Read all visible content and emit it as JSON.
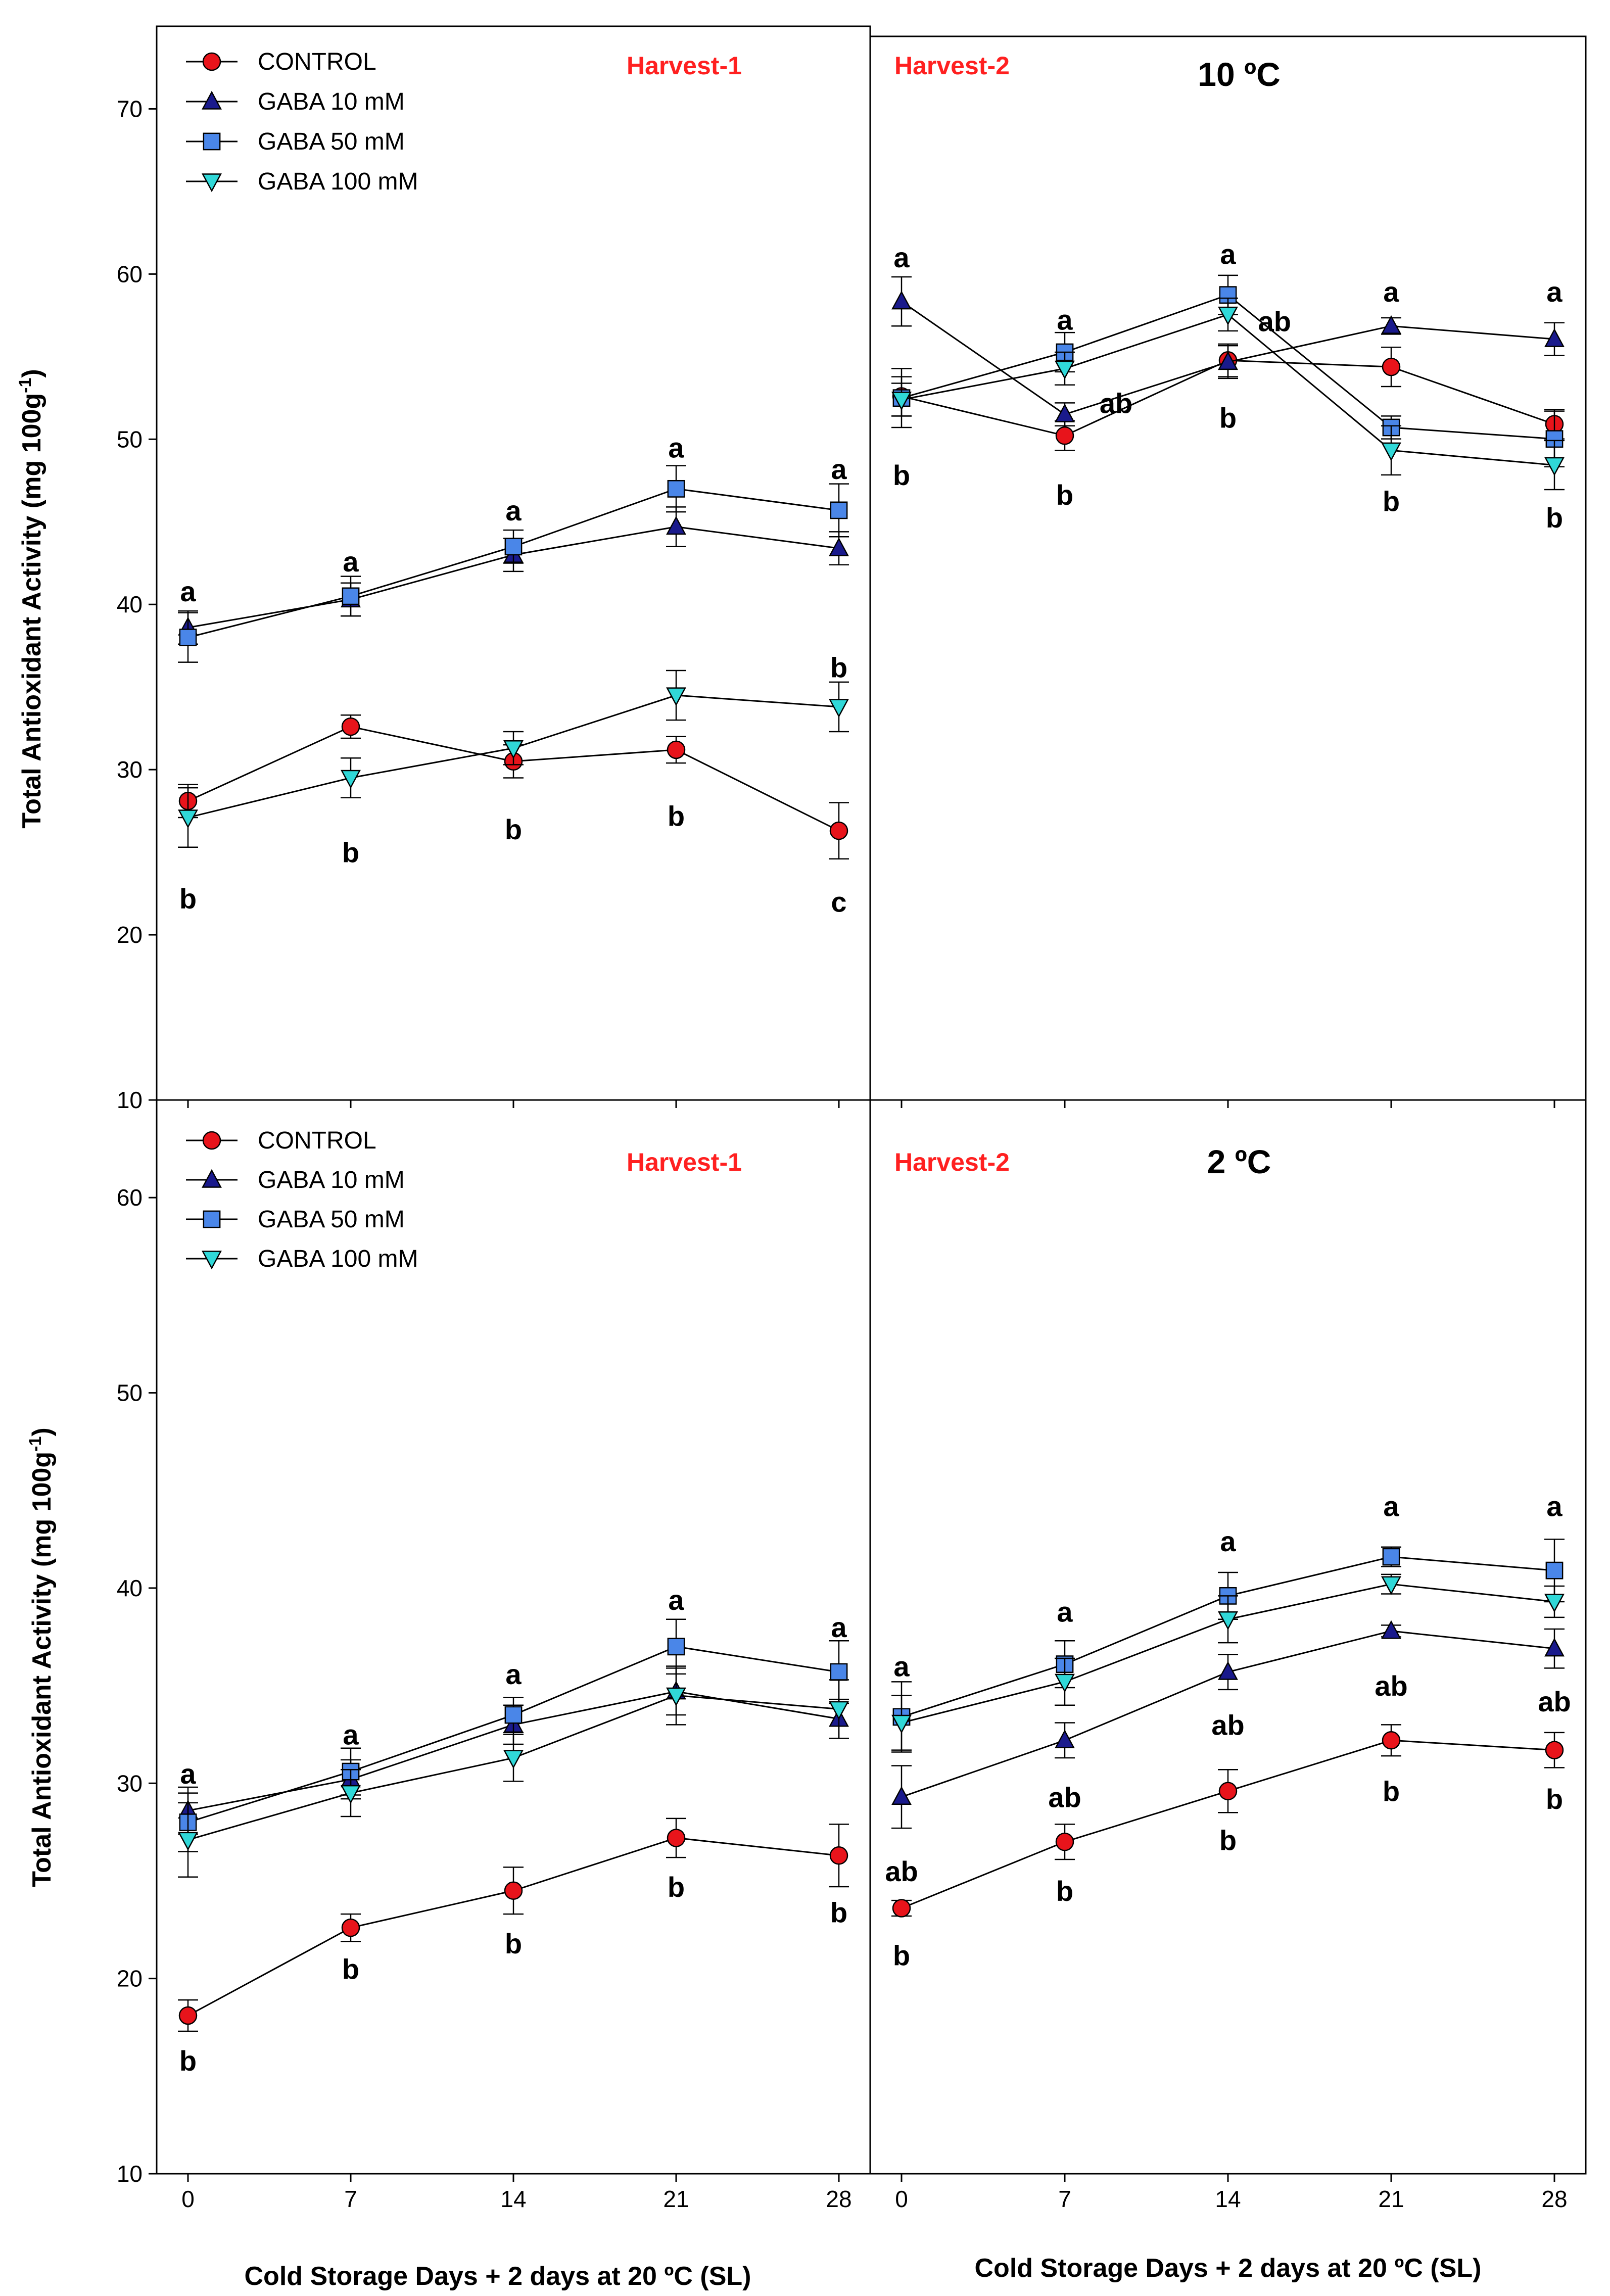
{
  "chart_data": {
    "type": "line",
    "x_label": "Cold Storage Days + 2 days at 20 ºC (SL)",
    "y_label_main": "Total Antioxidant Activity (mg 100g",
    "y_label_sup": "-1",
    "y_label_close": ")",
    "x_ticks": [
      "0",
      "7",
      "14",
      "21",
      "28"
    ],
    "colors": {
      "CONTROL": "#e8141b",
      "GABA 10 mM": "#1a1a8c",
      "GABA 50 mM": "#4a86e8",
      "GABA 100 mM": "#30d8d8"
    },
    "panels": [
      {
        "id": "top-left",
        "harvest_label": "Harvest-1",
        "temp_label": "",
        "ylim": [
          10,
          75
        ],
        "y_ticks": [
          "10",
          "20",
          "30",
          "40",
          "50",
          "60",
          "70"
        ],
        "legend": [
          "CONTROL",
          "GABA 10 mM",
          "GABA 50 mM",
          "GABA 100 mM"
        ],
        "series": [
          {
            "name": "CONTROL",
            "values": [
              28.1,
              32.6,
              30.5,
              31.2,
              26.3
            ],
            "errors": [
              1.0,
              0.7,
              1.0,
              0.8,
              1.7
            ]
          },
          {
            "name": "GABA 10 mM",
            "values": [
              38.6,
              40.3,
              43.0,
              44.7,
              43.4
            ],
            "errors": [
              1.0,
              1.0,
              1.0,
              1.2,
              1.0
            ]
          },
          {
            "name": "GABA 50 mM",
            "values": [
              38.0,
              40.5,
              43.5,
              47.0,
              45.7
            ],
            "errors": [
              1.5,
              1.2,
              1.0,
              1.4,
              1.6
            ]
          },
          {
            "name": "GABA 100 mM",
            "values": [
              27.1,
              29.5,
              31.3,
              34.5,
              33.8
            ],
            "errors": [
              1.8,
              1.2,
              1.0,
              1.5,
              1.5
            ]
          }
        ],
        "sig_labels": [
          {
            "x": 0,
            "y": 40.8,
            "text": "a"
          },
          {
            "x": 0,
            "y": 22.2,
            "text": "b"
          },
          {
            "x": 7,
            "y": 42.6,
            "text": "a"
          },
          {
            "x": 7,
            "y": 25.0,
            "text": "b"
          },
          {
            "x": 14,
            "y": 45.7,
            "text": "a"
          },
          {
            "x": 14,
            "y": 26.4,
            "text": "b"
          },
          {
            "x": 21,
            "y": 49.5,
            "text": "a"
          },
          {
            "x": 21,
            "y": 27.2,
            "text": "b"
          },
          {
            "x": 28,
            "y": 48.2,
            "text": "a"
          },
          {
            "x": 28,
            "y": 36.2,
            "text": "b"
          },
          {
            "x": 28,
            "y": 22.0,
            "text": "c"
          }
        ]
      },
      {
        "id": "top-right",
        "harvest_label": "Harvest-2",
        "temp_label": "10 ºC",
        "ylim": [
          10,
          75
        ],
        "y_ticks": [],
        "legend": [],
        "series": [
          {
            "name": "CONTROL",
            "values": [
              53.0,
              50.6,
              55.2,
              54.8,
              51.3
            ],
            "errors": [
              1.2,
              0.9,
              1.0,
              1.2,
              0.9
            ]
          },
          {
            "name": "GABA 10 mM",
            "values": [
              58.8,
              51.9,
              55.1,
              57.3,
              56.5
            ],
            "errors": [
              1.5,
              0.7,
              1.0,
              0.5,
              1.0
            ]
          },
          {
            "name": "GABA 50 mM",
            "values": [
              52.9,
              55.7,
              59.2,
              51.1,
              50.4
            ],
            "errors": [
              1.8,
              1.2,
              1.2,
              0.7,
              1.7
            ]
          },
          {
            "name": "GABA 100 mM",
            "values": [
              52.8,
              54.7,
              58.0,
              49.7,
              48.8
            ],
            "errors": [
              1.0,
              1.0,
              1.0,
              1.5,
              1.5
            ]
          }
        ],
        "sig_labels": [
          {
            "x": 0,
            "y": 61.5,
            "text": "a"
          },
          {
            "x": 0,
            "y": 48.2,
            "text": "b"
          },
          {
            "x": 7,
            "y": 57.7,
            "text": "a"
          },
          {
            "x": 9.2,
            "y": 52.6,
            "text": "ab"
          },
          {
            "x": 7,
            "y": 47.0,
            "text": "b"
          },
          {
            "x": 14,
            "y": 61.7,
            "text": "a"
          },
          {
            "x": 16.0,
            "y": 57.6,
            "text": "ab"
          },
          {
            "x": 14,
            "y": 51.7,
            "text": "b"
          },
          {
            "x": 21,
            "y": 59.4,
            "text": "a"
          },
          {
            "x": 21,
            "y": 46.6,
            "text": "b"
          },
          {
            "x": 28,
            "y": 59.4,
            "text": "a"
          },
          {
            "x": 28,
            "y": 45.6,
            "text": "b"
          }
        ]
      },
      {
        "id": "bottom-left",
        "harvest_label": "Harvest-1",
        "temp_label": "",
        "ylim": [
          10,
          65
        ],
        "y_ticks": [
          "10",
          "20",
          "30",
          "40",
          "50",
          "60"
        ],
        "legend": [
          "CONTROL",
          "GABA 10 mM",
          "GABA 50 mM",
          "GABA 100 mM"
        ],
        "series": [
          {
            "name": "CONTROL",
            "values": [
              18.1,
              22.6,
              24.5,
              27.2,
              26.3
            ],
            "errors": [
              0.8,
              0.7,
              1.2,
              1.0,
              1.6
            ]
          },
          {
            "name": "GABA 10 mM",
            "values": [
              28.6,
              30.2,
              33.0,
              34.7,
              33.3
            ],
            "errors": [
              1.2,
              1.0,
              1.0,
              1.2,
              1.0
            ]
          },
          {
            "name": "GABA 50 mM",
            "values": [
              28.0,
              30.6,
              33.5,
              37.0,
              35.7
            ],
            "errors": [
              1.5,
              1.2,
              0.9,
              1.4,
              1.6
            ]
          },
          {
            "name": "GABA 100 mM",
            "values": [
              27.1,
              29.5,
              31.3,
              34.5,
              33.8
            ],
            "errors": [
              1.9,
              1.2,
              1.2,
              1.5,
              1.5
            ]
          }
        ],
        "sig_labels": [
          {
            "x": 0,
            "y": 30.5,
            "text": "a"
          },
          {
            "x": 0,
            "y": 15.8,
            "text": "b"
          },
          {
            "x": 7,
            "y": 32.5,
            "text": "a"
          },
          {
            "x": 7,
            "y": 20.5,
            "text": "b"
          },
          {
            "x": 14,
            "y": 35.6,
            "text": "a"
          },
          {
            "x": 14,
            "y": 21.8,
            "text": "b"
          },
          {
            "x": 21,
            "y": 39.4,
            "text": "a"
          },
          {
            "x": 21,
            "y": 24.7,
            "text": "b"
          },
          {
            "x": 28,
            "y": 38.0,
            "text": "a"
          },
          {
            "x": 28,
            "y": 23.4,
            "text": "b"
          }
        ]
      },
      {
        "id": "bottom-right",
        "harvest_label": "Harvest-2",
        "temp_label": "2 ºC",
        "ylim": [
          10,
          65
        ],
        "y_ticks": [],
        "legend": [],
        "series": [
          {
            "name": "CONTROL",
            "values": [
              23.6,
              27.0,
              29.6,
              32.2,
              31.7
            ],
            "errors": [
              0.4,
              0.9,
              1.1,
              0.8,
              0.9
            ]
          },
          {
            "name": "GABA 10 mM",
            "values": [
              29.3,
              32.2,
              35.7,
              37.8,
              36.9
            ],
            "errors": [
              1.6,
              0.9,
              0.9,
              0.3,
              1.0
            ]
          },
          {
            "name": "GABA 50 mM",
            "values": [
              33.4,
              36.1,
              39.6,
              41.6,
              40.9
            ],
            "errors": [
              1.8,
              1.2,
              1.2,
              0.5,
              1.6
            ]
          },
          {
            "name": "GABA 100 mM",
            "values": [
              33.1,
              35.2,
              38.4,
              40.2,
              39.3
            ],
            "errors": [
              1.4,
              1.2,
              1.2,
              0.5,
              0.8
            ]
          }
        ],
        "sig_labels": [
          {
            "x": 0,
            "y": 36.0,
            "text": "a"
          },
          {
            "x": 0,
            "y": 25.5,
            "text": "ab"
          },
          {
            "x": 0,
            "y": 21.2,
            "text": "b"
          },
          {
            "x": 7,
            "y": 38.8,
            "text": "a"
          },
          {
            "x": 7,
            "y": 29.3,
            "text": "ab"
          },
          {
            "x": 7,
            "y": 24.5,
            "text": "b"
          },
          {
            "x": 14,
            "y": 42.4,
            "text": "a"
          },
          {
            "x": 14,
            "y": 33.0,
            "text": "ab"
          },
          {
            "x": 14,
            "y": 27.1,
            "text": "b"
          },
          {
            "x": 21,
            "y": 44.2,
            "text": "a"
          },
          {
            "x": 21,
            "y": 35.0,
            "text": "ab"
          },
          {
            "x": 21,
            "y": 29.6,
            "text": "b"
          },
          {
            "x": 28,
            "y": 44.2,
            "text": "a"
          },
          {
            "x": 28,
            "y": 34.2,
            "text": "ab"
          },
          {
            "x": 28,
            "y": 29.2,
            "text": "b"
          }
        ]
      }
    ]
  }
}
